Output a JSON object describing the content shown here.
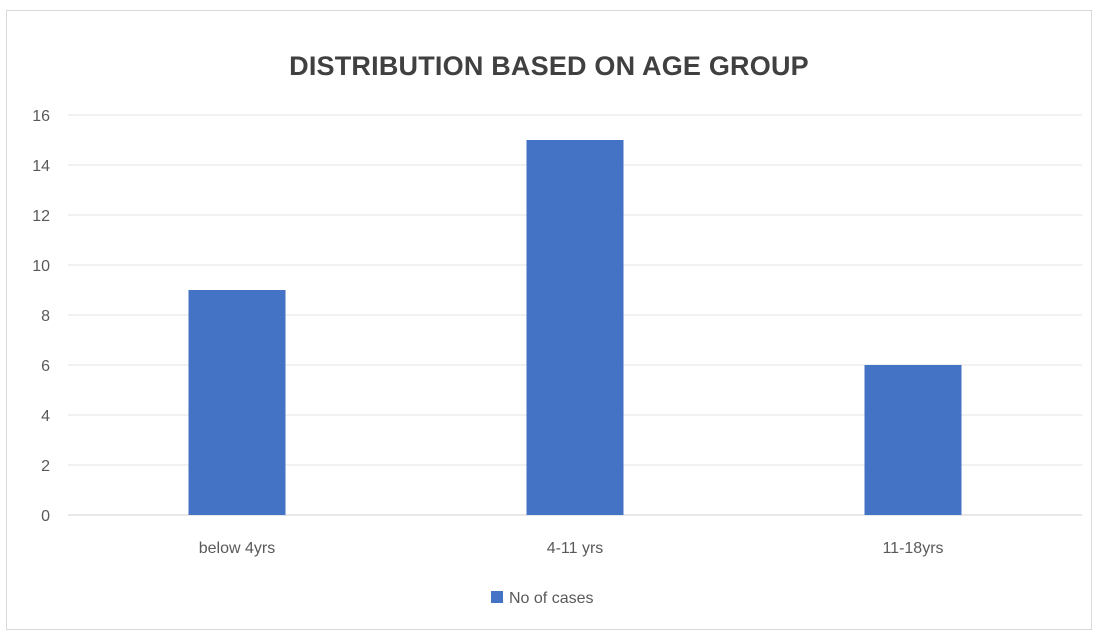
{
  "chart_data": {
    "type": "bar",
    "title": "DISTRIBUTION BASED ON AGE GROUP",
    "categories": [
      "below 4yrs",
      "4-11 yrs",
      "11-18yrs"
    ],
    "series": [
      {
        "name": "No of cases",
        "values": [
          9,
          15,
          6
        ],
        "color": "#4472c4"
      }
    ],
    "ylim": [
      0,
      16
    ],
    "yticks": [
      0,
      2,
      4,
      6,
      8,
      10,
      12,
      14,
      16
    ],
    "grid": true,
    "legend_position": "bottom"
  }
}
